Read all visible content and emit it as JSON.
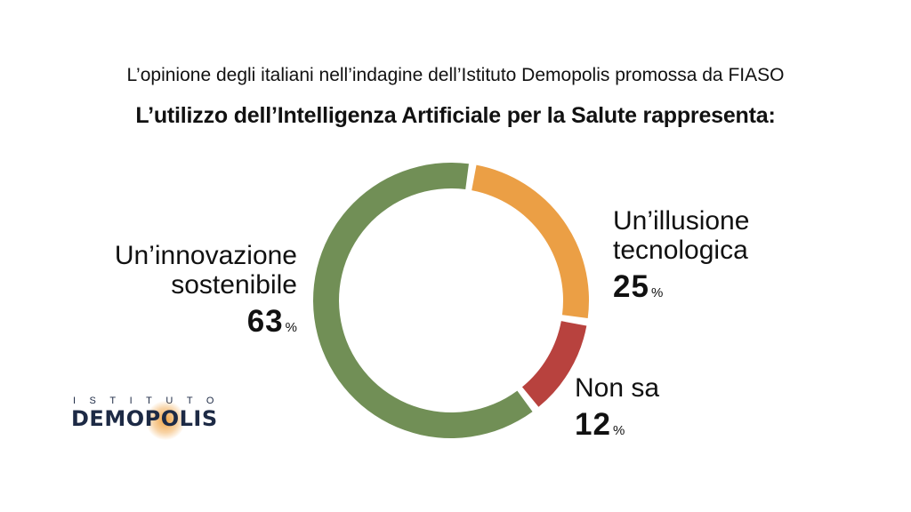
{
  "header": {
    "subtitle": "L’opinione degli italiani nell’indagine dell’Istituto Demopolis promossa da FIASO",
    "title": "L’utilizzo dell’Intelligenza Artificiale per la Salute rappresenta:"
  },
  "chart_data": {
    "type": "pie",
    "title": "L’utilizzo dell’Intelligenza Artificiale per la Salute rappresenta:",
    "subtitle": "L’opinione degli italiani nell’indagine dell’Istituto Demopolis promossa da FIASO",
    "donut": true,
    "unit": "%",
    "slices": [
      {
        "label_line1": "Un’illusione",
        "label_line2": "tecnologica",
        "value": 25,
        "value_text": "25",
        "color": "#eb9f45"
      },
      {
        "label_line1": "Non sa",
        "label_line2": "",
        "value": 12,
        "value_text": "12",
        "color": "#b8423e"
      },
      {
        "label_line1": "Un’innovazione",
        "label_line2": "sostenibile",
        "value": 63,
        "value_text": "63",
        "color": "#718f56"
      }
    ]
  },
  "logo": {
    "top_text": "ISTITUTO",
    "main_text": "DEMOPOLIS",
    "colors": {
      "text": "#1d2a45",
      "glow": "#f0962a"
    }
  }
}
